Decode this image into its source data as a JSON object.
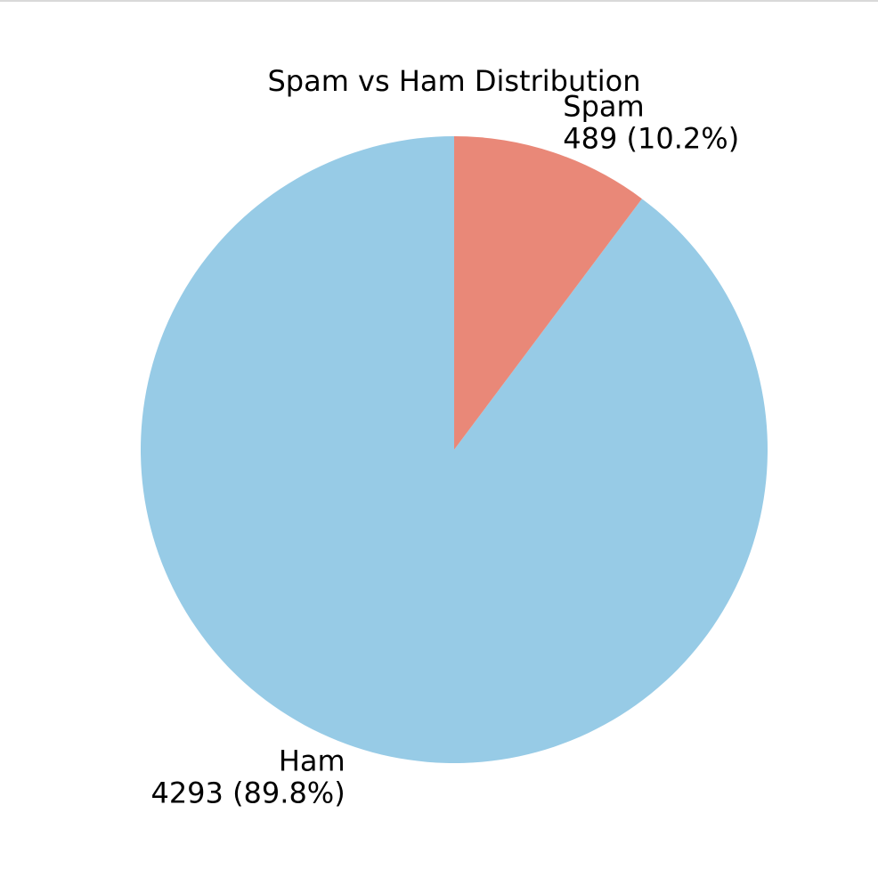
{
  "chart_data": {
    "type": "pie",
    "title": "Spam vs Ham Distribution",
    "start_angle": "top",
    "direction": "counterclockwise-from-top",
    "slices": [
      {
        "label": "Ham",
        "value": 4293,
        "percent": "89.8%",
        "color": "#97cbe6"
      },
      {
        "label": "Spam",
        "value": 489,
        "percent": "10.2%",
        "color": "#e98878"
      }
    ]
  }
}
